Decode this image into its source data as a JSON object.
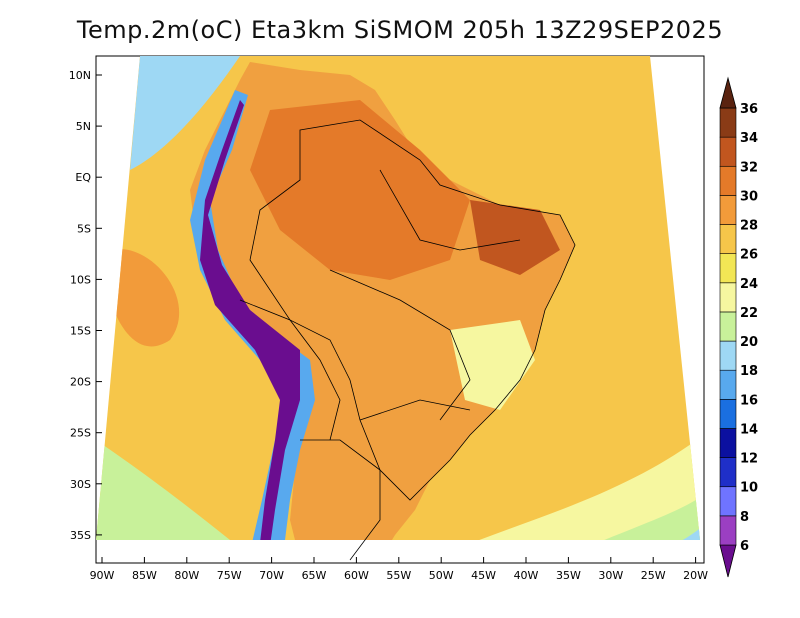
{
  "title": "Temp.2m(oC) Eta3km SiSMOM 205h 13Z29SEP2025",
  "lat_labels": [
    "10N",
    "5N",
    "EQ",
    "5S",
    "10S",
    "15S",
    "20S",
    "25S",
    "30S",
    "35S"
  ],
  "lon_labels": [
    "90W",
    "85W",
    "80W",
    "75W",
    "70W",
    "65W",
    "60W",
    "55W",
    "50W",
    "45W",
    "40W",
    "35W",
    "30W",
    "25W",
    "20W"
  ],
  "colorbar": {
    "levels": [
      "6",
      "8",
      "10",
      "12",
      "14",
      "16",
      "18",
      "20",
      "22",
      "24",
      "26",
      "28",
      "30",
      "32",
      "34",
      "36"
    ],
    "colors": [
      "#6a0d8f",
      "#9b3fc2",
      "#6f74ff",
      "#1f2fc8",
      "#0b10a0",
      "#1a6fe0",
      "#58a9ee",
      "#9ed8f4",
      "#c8f19a",
      "#f6f7a0",
      "#f2e655",
      "#f6c64a",
      "#f29b3a",
      "#e47a29",
      "#c1561f",
      "#8a3b16",
      "#5a2310"
    ]
  },
  "map": {
    "ocean_color": "#f6c64a",
    "continent_color": "#f0a040"
  }
}
